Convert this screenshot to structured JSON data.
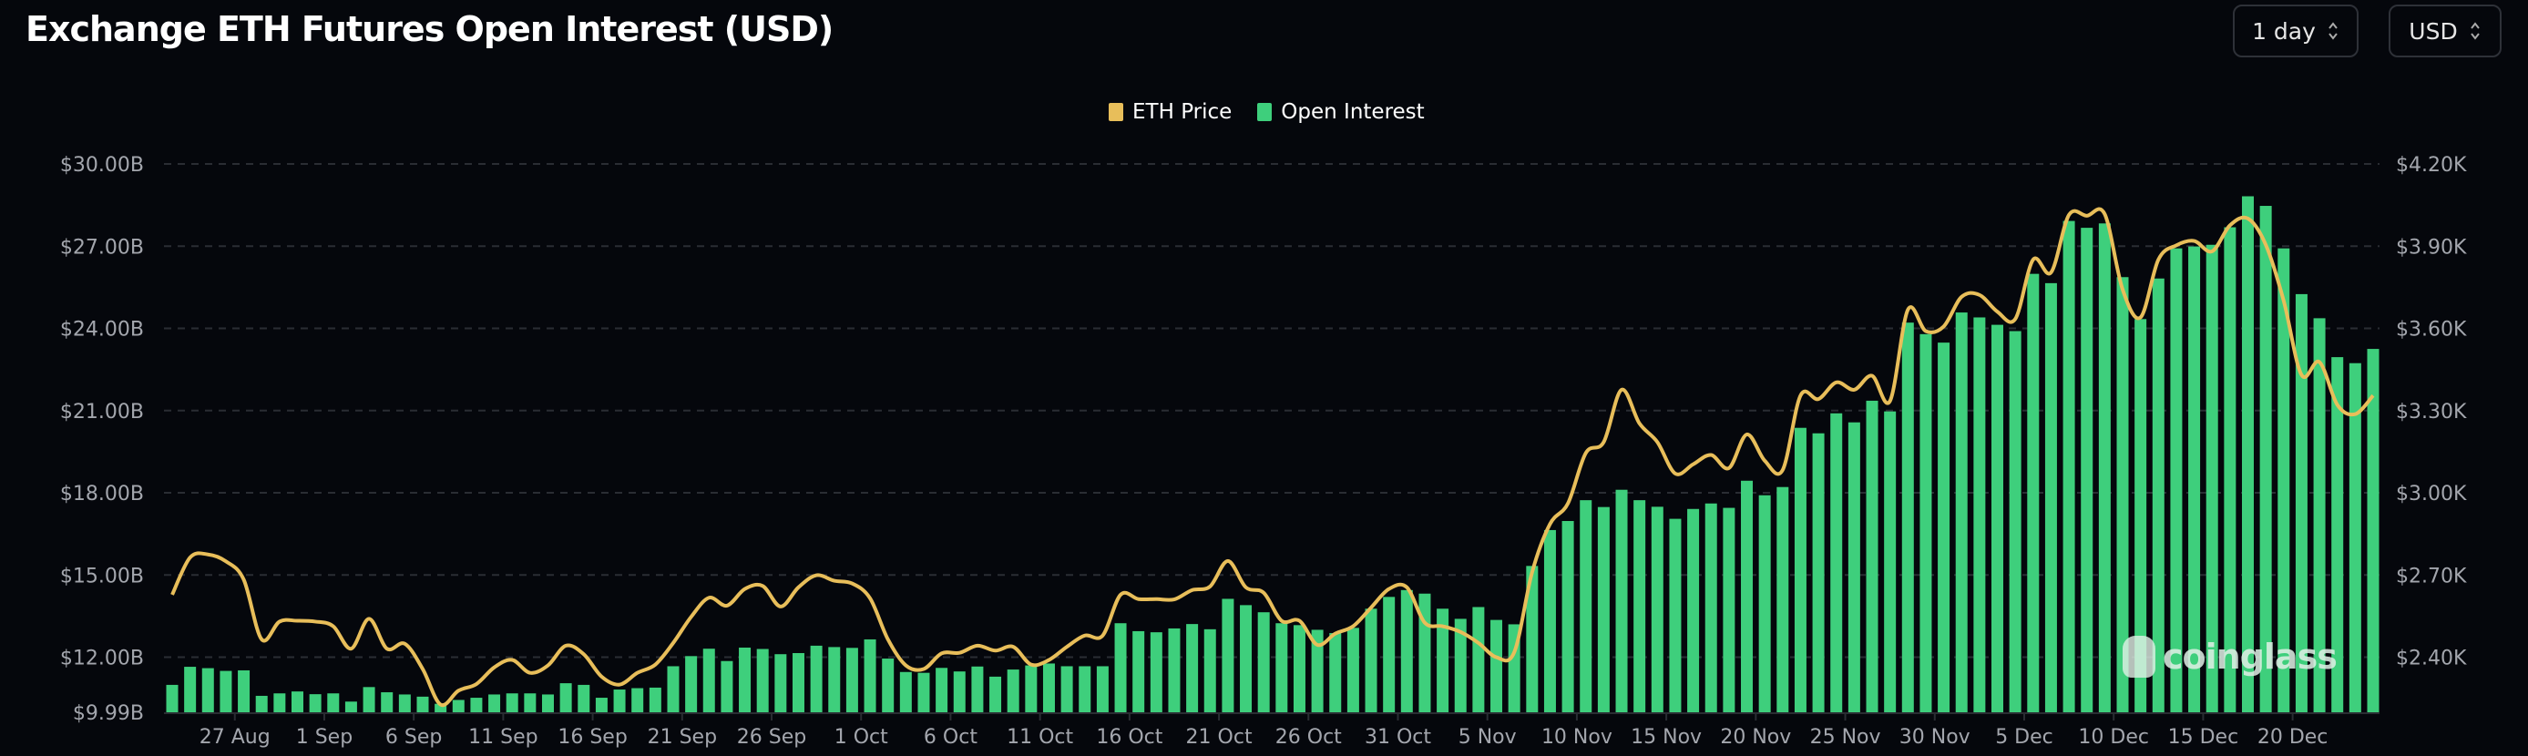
{
  "header": {
    "title": "Exchange ETH Futures Open Interest (USD)",
    "period_select": "1 day",
    "unit_select": "USD"
  },
  "watermark": "coinglass",
  "chart_data": {
    "type": "bar+line",
    "title": "Exchange ETH Futures Open Interest (USD)",
    "legend": {
      "placement": "top-center",
      "entries": [
        "ETH Price",
        "Open Interest"
      ]
    },
    "colors": {
      "eth_price": "#e8be5a",
      "open_interest": "#3ecf7c",
      "background": "#05070c",
      "grid": "#2a2d33"
    },
    "grid": true,
    "left_axis": {
      "min": 9.99,
      "max": 30.0,
      "ticks": [
        9.99,
        12,
        15,
        18,
        21,
        24,
        27,
        30
      ],
      "tick_labels": [
        "$9.99B",
        "$12.00B",
        "$15.00B",
        "$18.00B",
        "$21.00B",
        "$24.00B",
        "$27.00B",
        "$30.00B"
      ],
      "unit": "USD billions"
    },
    "right_axis": {
      "min": 2.199,
      "max": 4.2,
      "ticks": [
        2.4,
        2.7,
        3.0,
        3.3,
        3.6,
        3.9,
        4.2
      ],
      "tick_labels": [
        "$2.40K",
        "$2.70K",
        "$3.00K",
        "$3.30K",
        "$3.60K",
        "$3.90K",
        "$4.20K"
      ],
      "unit": "USD thousands"
    },
    "x_tick_labels": [
      "27 Aug",
      "1 Sep",
      "6 Sep",
      "11 Sep",
      "16 Sep",
      "21 Sep",
      "26 Sep",
      "1 Oct",
      "6 Oct",
      "11 Oct",
      "16 Oct",
      "21 Oct",
      "26 Oct",
      "31 Oct",
      "5 Nov",
      "10 Nov",
      "15 Nov",
      "20 Nov",
      "25 Nov",
      "30 Nov",
      "5 Dec",
      "10 Dec",
      "15 Dec",
      "20 Dec"
    ],
    "x": [
      "24 Aug",
      "25 Aug",
      "26 Aug",
      "27 Aug",
      "28 Aug",
      "29 Aug",
      "30 Aug",
      "31 Aug",
      "1 Sep",
      "2 Sep",
      "3 Sep",
      "4 Sep",
      "5 Sep",
      "6 Sep",
      "7 Sep",
      "8 Sep",
      "9 Sep",
      "10 Sep",
      "11 Sep",
      "12 Sep",
      "13 Sep",
      "14 Sep",
      "15 Sep",
      "16 Sep",
      "17 Sep",
      "18 Sep",
      "19 Sep",
      "20 Sep",
      "21 Sep",
      "22 Sep",
      "23 Sep",
      "24 Sep",
      "25 Sep",
      "26 Sep",
      "27 Sep",
      "28 Sep",
      "29 Sep",
      "30 Sep",
      "1 Oct",
      "2 Oct",
      "3 Oct",
      "4 Oct",
      "5 Oct",
      "6 Oct",
      "7 Oct",
      "8 Oct",
      "9 Oct",
      "10 Oct",
      "11 Oct",
      "12 Oct",
      "13 Oct",
      "14 Oct",
      "15 Oct",
      "16 Oct",
      "17 Oct",
      "18 Oct",
      "19 Oct",
      "20 Oct",
      "21 Oct",
      "22 Oct",
      "23 Oct",
      "24 Oct",
      "25 Oct",
      "26 Oct",
      "27 Oct",
      "28 Oct",
      "29 Oct",
      "30 Oct",
      "31 Oct",
      "1 Nov",
      "2 Nov",
      "3 Nov",
      "4 Nov",
      "5 Nov",
      "6 Nov",
      "7 Nov",
      "8 Nov",
      "9 Nov",
      "10 Nov",
      "11 Nov",
      "12 Nov",
      "13 Nov",
      "14 Nov",
      "15 Nov",
      "16 Nov",
      "17 Nov",
      "18 Nov",
      "19 Nov",
      "20 Nov",
      "21 Nov",
      "22 Nov",
      "23 Nov",
      "24 Nov",
      "25 Nov",
      "26 Nov",
      "27 Nov",
      "28 Nov",
      "29 Nov",
      "30 Nov",
      "1 Dec",
      "2 Dec",
      "3 Dec",
      "4 Dec",
      "5 Dec",
      "6 Dec",
      "7 Dec",
      "8 Dec",
      "9 Dec",
      "10 Dec",
      "11 Dec",
      "12 Dec",
      "13 Dec",
      "14 Dec",
      "15 Dec",
      "16 Dec",
      "17 Dec",
      "18 Dec",
      "19 Dec",
      "20 Dec",
      "21 Dec",
      "22 Dec",
      "23 Dec",
      "24 Dec",
      "25 Dec"
    ],
    "series": [
      {
        "name": "Open Interest",
        "type": "bar",
        "axis": "left",
        "values": [
          10.99,
          11.65,
          11.6,
          11.5,
          11.52,
          10.59,
          10.68,
          10.75,
          10.65,
          10.68,
          10.38,
          10.91,
          10.72,
          10.64,
          10.56,
          10.3,
          10.44,
          10.52,
          10.64,
          10.68,
          10.68,
          10.64,
          11.05,
          10.99,
          10.52,
          10.82,
          10.87,
          10.89,
          11.67,
          12.04,
          12.31,
          11.86,
          12.35,
          12.3,
          12.11,
          12.15,
          12.42,
          12.37,
          12.34,
          12.65,
          11.95,
          11.46,
          11.43,
          11.61,
          11.48,
          11.66,
          11.29,
          11.55,
          11.7,
          11.77,
          11.67,
          11.67,
          11.67,
          13.24,
          12.95,
          12.91,
          13.05,
          13.21,
          13.02,
          14.13,
          13.9,
          13.64,
          13.24,
          13.17,
          13.0,
          12.88,
          13.07,
          13.77,
          14.2,
          14.45,
          14.32,
          13.77,
          13.4,
          13.83,
          13.36,
          13.2,
          15.33,
          16.64,
          16.97,
          17.73,
          17.48,
          18.11,
          17.73,
          17.49,
          17.05,
          17.41,
          17.61,
          17.45,
          18.44,
          17.91,
          18.21,
          20.37,
          20.17,
          20.9,
          20.57,
          21.36,
          20.97,
          24.21,
          23.79,
          23.48,
          24.58,
          24.4,
          24.13,
          23.9,
          25.99,
          25.65,
          27.92,
          27.67,
          27.83,
          25.87,
          24.34,
          25.82,
          26.92,
          26.99,
          27.05,
          27.69,
          28.82,
          28.47,
          26.92,
          25.25,
          24.37,
          22.95,
          22.73,
          23.25
        ]
      },
      {
        "name": "ETH Price",
        "type": "line",
        "axis": "right",
        "values": [
          2.628,
          2.764,
          2.775,
          2.75,
          2.683,
          2.465,
          2.53,
          2.533,
          2.53,
          2.513,
          2.431,
          2.54,
          2.431,
          2.449,
          2.357,
          2.227,
          2.278,
          2.302,
          2.363,
          2.39,
          2.343,
          2.37,
          2.442,
          2.411,
          2.329,
          2.3,
          2.343,
          2.373,
          2.452,
          2.547,
          2.617,
          2.588,
          2.649,
          2.66,
          2.585,
          2.655,
          2.699,
          2.679,
          2.669,
          2.615,
          2.465,
          2.37,
          2.357,
          2.414,
          2.416,
          2.442,
          2.424,
          2.438,
          2.373,
          2.39,
          2.438,
          2.479,
          2.479,
          2.628,
          2.612,
          2.612,
          2.611,
          2.645,
          2.658,
          2.751,
          2.655,
          2.635,
          2.533,
          2.533,
          2.445,
          2.486,
          2.513,
          2.581,
          2.649,
          2.655,
          2.526,
          2.513,
          2.492,
          2.452,
          2.4,
          2.418,
          2.71,
          2.886,
          2.961,
          3.145,
          3.185,
          3.376,
          3.253,
          3.185,
          3.07,
          3.104,
          3.138,
          3.09,
          3.213,
          3.117,
          3.083,
          3.355,
          3.342,
          3.403,
          3.376,
          3.427,
          3.335,
          3.668,
          3.59,
          3.607,
          3.715,
          3.722,
          3.661,
          3.634,
          3.851,
          3.804,
          4.014,
          4.011,
          4.017,
          3.742,
          3.64,
          3.851,
          3.903,
          3.919,
          3.881,
          3.976,
          4.001,
          3.905,
          3.701,
          3.43,
          3.477,
          3.321,
          3.287,
          3.355
        ]
      }
    ]
  }
}
